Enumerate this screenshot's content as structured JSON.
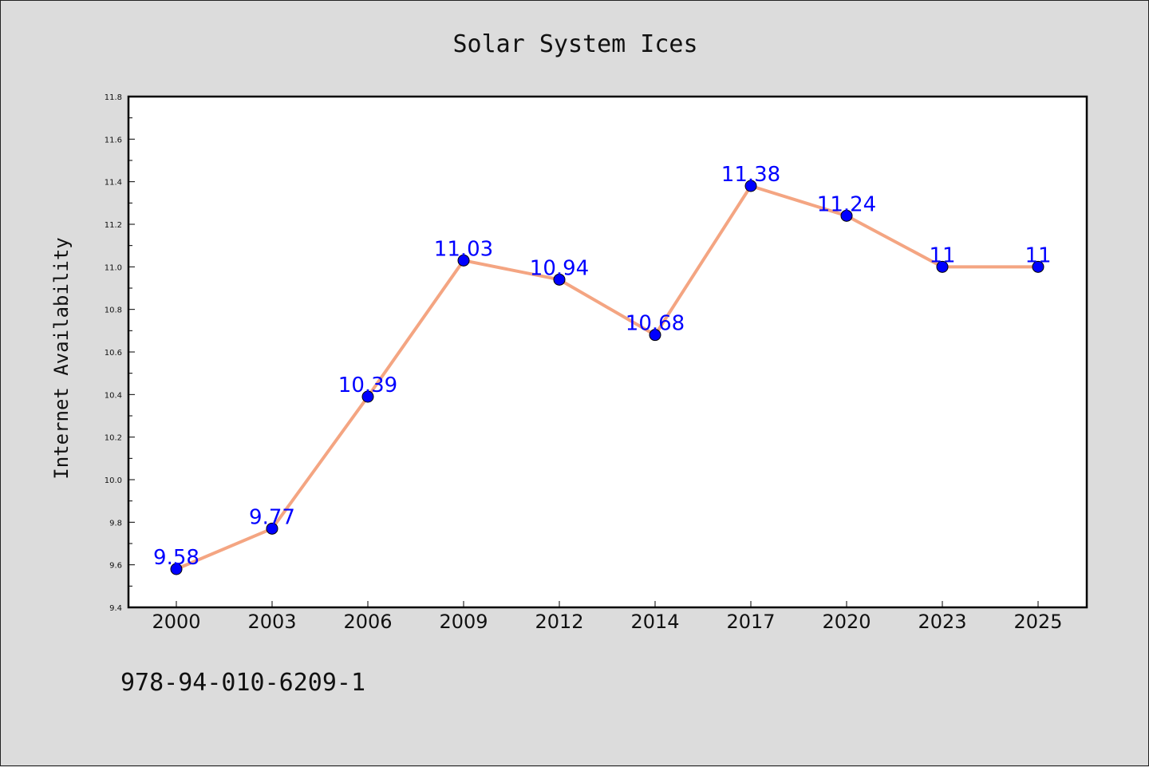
{
  "footer": {
    "code": "978-94-010-6209-1"
  },
  "colors": {
    "background": "#dcdcdc",
    "plot_background": "#ffffff",
    "line": "#f4a582",
    "marker": "#0000ff",
    "data_label": "#0000ff"
  },
  "chart_data": {
    "type": "line",
    "title": "Solar System Ices",
    "xlabel": "",
    "ylabel": "Internet Availability",
    "categories": [
      "2000",
      "2003",
      "2006",
      "2009",
      "2012",
      "2014",
      "2017",
      "2020",
      "2023",
      "2025"
    ],
    "series": [
      {
        "values": [
          9.58,
          9.77,
          10.39,
          11.03,
          10.94,
          10.68,
          11.38,
          11.24,
          11,
          11
        ],
        "labels": [
          "9.58",
          "9.77",
          "10.39",
          "11.03",
          "10.94",
          "10.68",
          "11.38",
          "11.24",
          "11",
          "11"
        ]
      }
    ],
    "ylim": [
      9.4,
      11.8
    ],
    "yticks": [
      "9.4",
      "9.6",
      "9.8",
      "10.0",
      "10.2",
      "10.4",
      "10.6",
      "10.8",
      "11.0",
      "11.2",
      "11.4",
      "11.6",
      "11.8"
    ],
    "grid": false,
    "legend": "none"
  }
}
